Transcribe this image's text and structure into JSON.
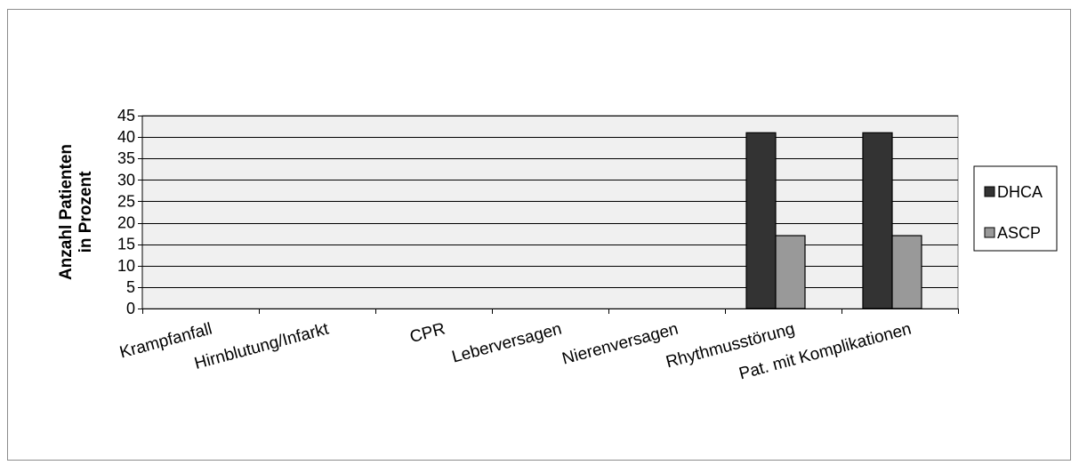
{
  "chart_data": {
    "type": "bar",
    "title": "",
    "xlabel": "",
    "ylabel": "Anzahl Patienten in Prozent",
    "ylabel_lines": [
      "Anzahl Patienten",
      "in Prozent"
    ],
    "ylim": [
      0,
      45
    ],
    "yticks": [
      0,
      5,
      10,
      15,
      20,
      25,
      30,
      35,
      40,
      45
    ],
    "grid": true,
    "legend_position": "right",
    "categories": [
      "Krampfanfall",
      "Hirnblutung/Infarkt",
      "CPR",
      "Leberversagen",
      "Nierenversagen",
      "Rhythmusstörung",
      "Pat. mit Komplikationen"
    ],
    "series": [
      {
        "name": "DHCA",
        "color": "#333333",
        "values": [
          0,
          0,
          0,
          0,
          0,
          41,
          41
        ]
      },
      {
        "name": "ASCP",
        "color": "#999999",
        "values": [
          0,
          0,
          0,
          0,
          0,
          17,
          17
        ]
      }
    ],
    "plot_background": "#f0f0f0"
  }
}
